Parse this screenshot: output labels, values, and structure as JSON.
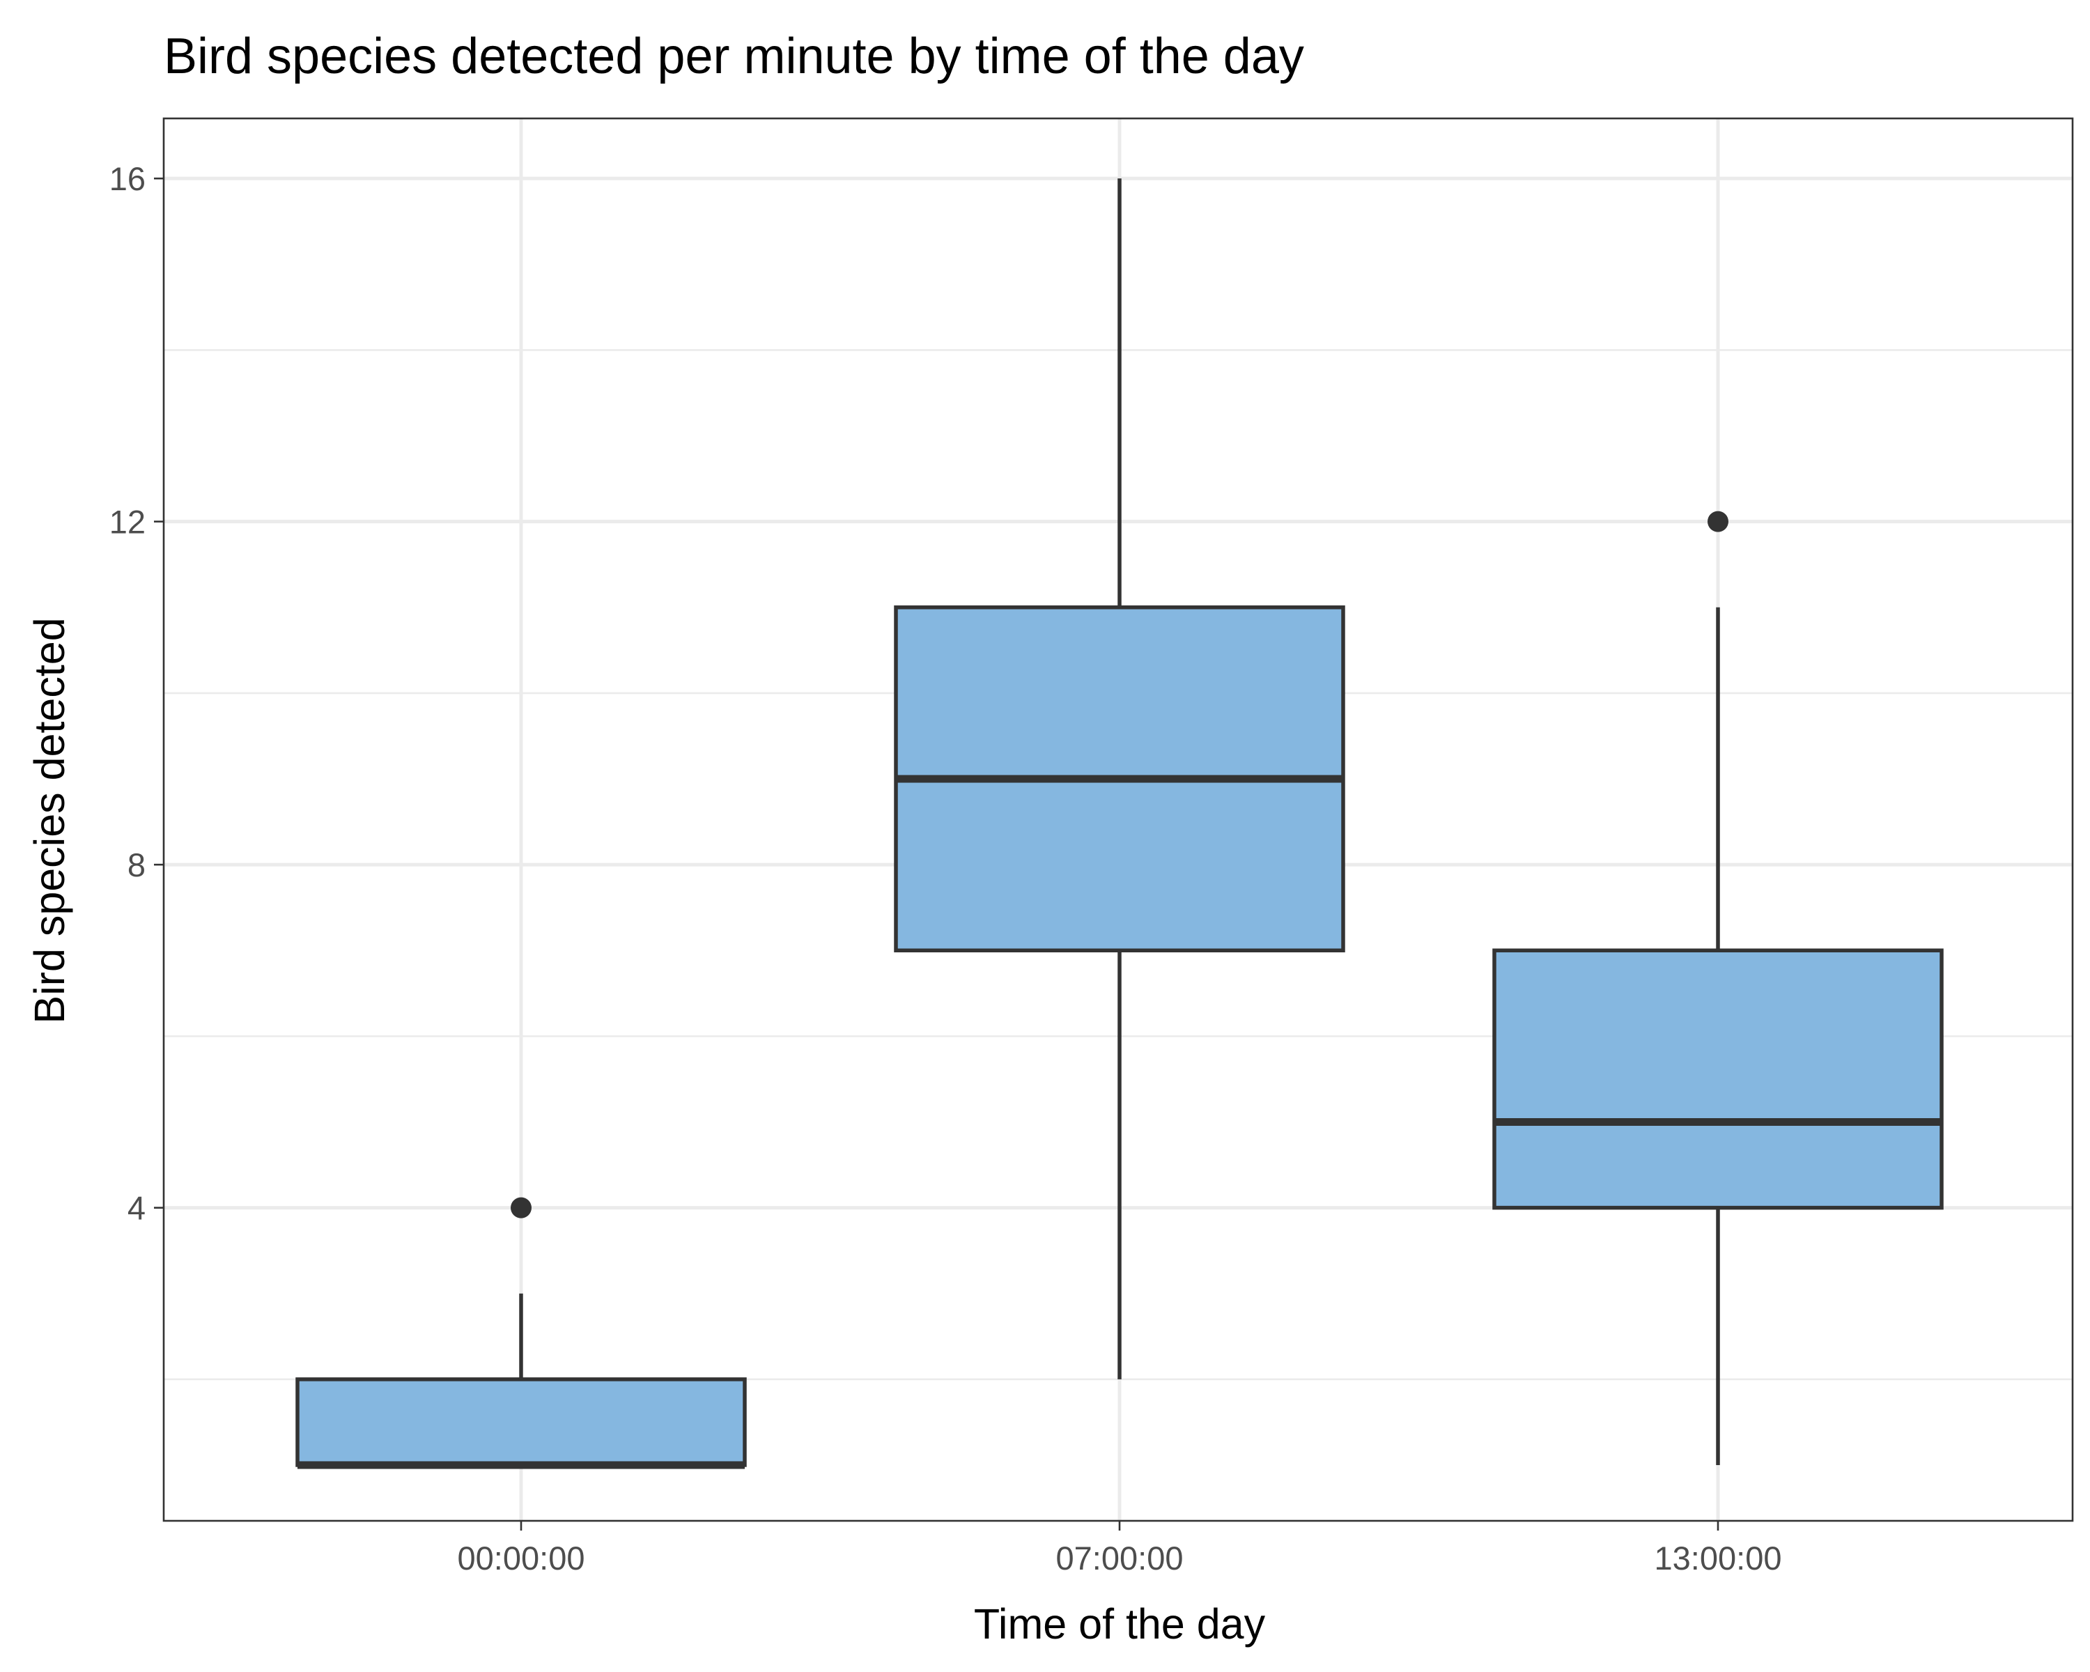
{
  "chart_data": {
    "type": "boxplot",
    "title": "Bird species detected per minute by time of the day",
    "xlabel": "Time of the day",
    "ylabel": "Bird species detected",
    "categories": [
      "00:00:00",
      "07:00:00",
      "13:00:00"
    ],
    "y_ticks": [
      4,
      8,
      12,
      16
    ],
    "y_tick_labels": [
      "4",
      "8",
      "12",
      "16"
    ],
    "ylim": [
      0.35,
      16.7
    ],
    "grid": true,
    "legend": "none",
    "box_fill": "#85b7e0",
    "line_color": "#333333",
    "boxes": [
      {
        "category": "00:00:00",
        "whisker_low": 1,
        "q1": 1,
        "median": 1,
        "q3": 2,
        "whisker_high": 3,
        "outliers": [
          4
        ]
      },
      {
        "category": "07:00:00",
        "whisker_low": 2,
        "q1": 7,
        "median": 9,
        "q3": 11,
        "whisker_high": 16,
        "outliers": []
      },
      {
        "category": "13:00:00",
        "whisker_low": 1,
        "q1": 4,
        "median": 5,
        "q3": 7,
        "whisker_high": 11,
        "outliers": [
          12
        ]
      }
    ]
  }
}
